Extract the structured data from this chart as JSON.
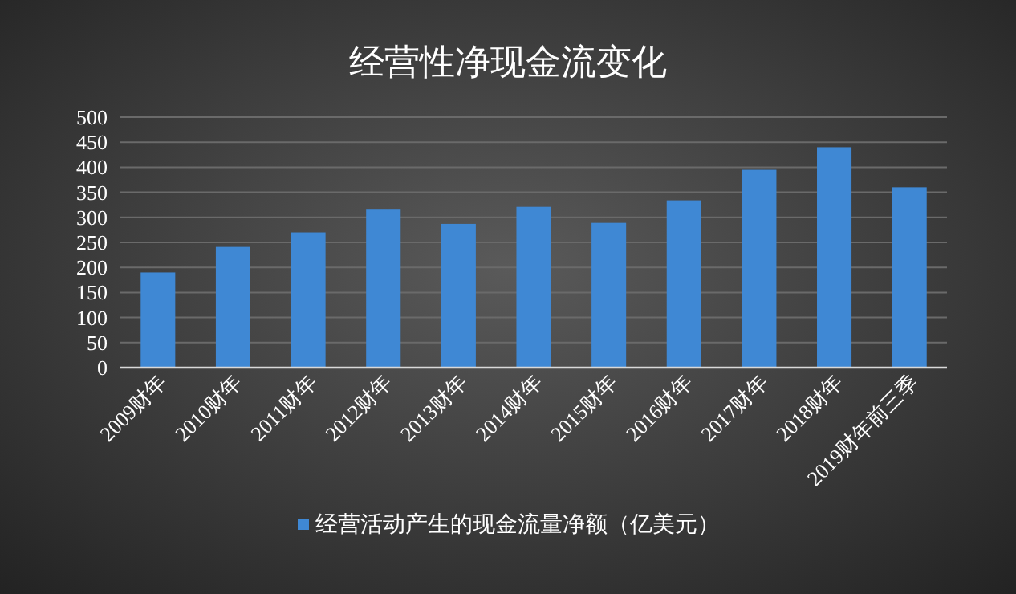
{
  "chart_data": {
    "type": "bar",
    "title": "经营性净现金流变化",
    "categories": [
      "2009财年",
      "2010财年",
      "2011财年",
      "2012财年",
      "2013财年",
      "2014财年",
      "2015财年",
      "2016财年",
      "2017财年",
      "2018财年",
      "2019财年前三季"
    ],
    "series": [
      {
        "name": "经营活动产生的现金流量净额（亿美元）",
        "color": "#3f88d4",
        "values": [
          190,
          241,
          270,
          317,
          287,
          321,
          289,
          334,
          395,
          440,
          360
        ]
      }
    ],
    "ylim": [
      0,
      500
    ],
    "yticks": [
      0,
      50,
      100,
      150,
      200,
      250,
      300,
      350,
      400,
      450,
      500
    ],
    "grid": "y",
    "legend": "bottom"
  }
}
